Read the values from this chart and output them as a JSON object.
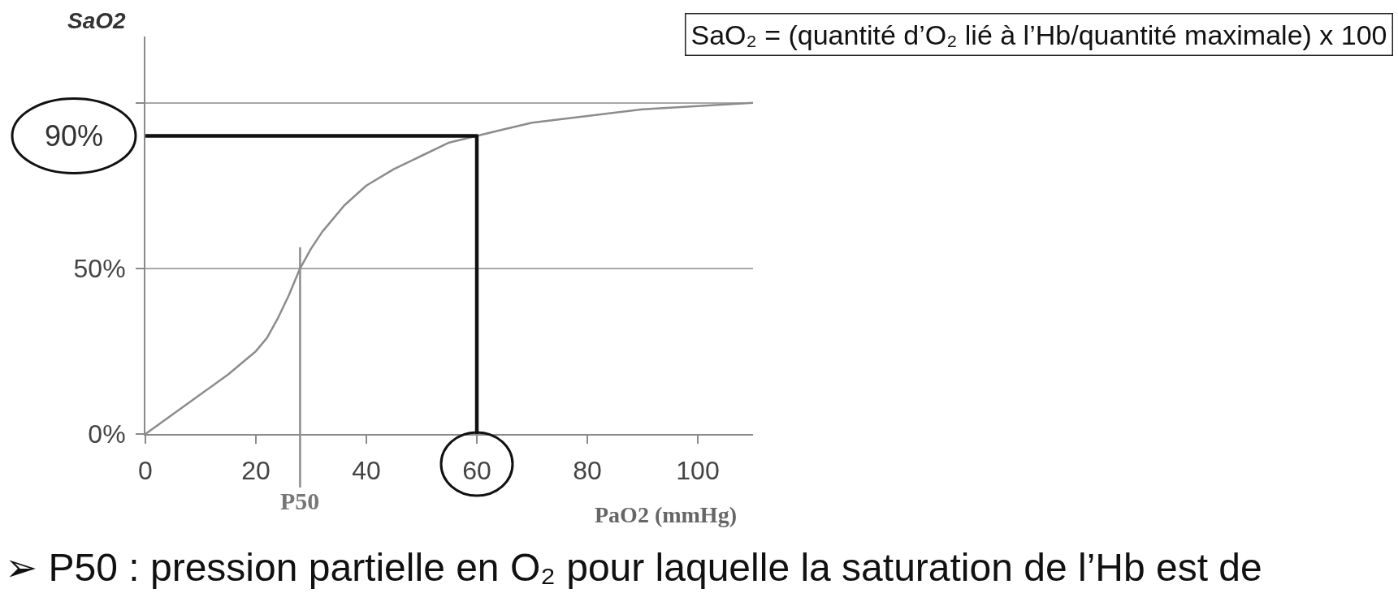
{
  "chart_data": {
    "type": "line",
    "xlabel": "PaO2 (mmHg)",
    "ylabel": "SaO2",
    "annotations": [
      "SaO₂ = (quantité d’O₂ lié à l’Hb/quantité maximale) x 100",
      {
        "text": "90%",
        "x": 0,
        "y": 90
      },
      "➢ P50 : pression partielle en O₂ pour laquelle la saturation de l’Hb est de"
    ],
    "series": [
      {
        "color": "#8c8c8c",
        "x": [
          0,
          5,
          10,
          15,
          20,
          22,
          24,
          26,
          28,
          30,
          32,
          34,
          36,
          38,
          40,
          45,
          50,
          55,
          60,
          65,
          70,
          80,
          90,
          100,
          110
        ],
        "values": [
          0,
          6,
          12,
          18,
          25,
          29,
          35,
          42,
          50,
          56,
          61,
          65,
          69,
          72,
          75,
          80,
          84,
          88,
          90,
          92,
          94,
          96,
          98,
          99,
          100
        ]
      },
      {
        "color": "#111111",
        "x": [
          0,
          60,
          60
        ],
        "values": [
          90,
          90,
          0
        ]
      }
    ],
    "ref_lines": [
      {
        "axis": "x",
        "value": 28,
        "label": "P50",
        "color": "#8c8c8c"
      }
    ],
    "xlim": [
      0,
      110
    ],
    "xticks": [
      0,
      20,
      40,
      60,
      80,
      100
    ],
    "ylim": [
      0,
      120
    ],
    "yticks": [
      {
        "value": 0,
        "label": "0%"
      },
      {
        "value": 50,
        "label": "50%"
      },
      {
        "value": 100,
        "label": null
      }
    ],
    "grid": "y",
    "marker": "none",
    "line_style": "solid"
  }
}
